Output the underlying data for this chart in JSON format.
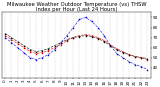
{
  "title": "Milwaukee Weather Outdoor Temperature (vs) THSW Index per Hour (Last 24 Hours)",
  "hours": [
    0,
    1,
    2,
    3,
    4,
    5,
    6,
    7,
    8,
    9,
    10,
    11,
    12,
    13,
    14,
    15,
    16,
    17,
    18,
    19,
    20,
    21,
    22,
    23
  ],
  "temp": [
    72,
    68,
    64,
    60,
    56,
    54,
    55,
    57,
    60,
    63,
    67,
    70,
    72,
    73,
    72,
    70,
    67,
    63,
    59,
    56,
    53,
    51,
    50,
    48
  ],
  "thsw": [
    70,
    65,
    60,
    55,
    50,
    48,
    50,
    53,
    58,
    65,
    72,
    80,
    88,
    90,
    86,
    80,
    72,
    62,
    54,
    50,
    46,
    43,
    41,
    38
  ],
  "black": [
    74,
    70,
    66,
    62,
    58,
    56,
    57,
    59,
    62,
    65,
    68,
    70,
    71,
    72,
    71,
    69,
    66,
    62,
    58,
    55,
    53,
    51,
    50,
    49
  ],
  "temp_color": "#dd0000",
  "thsw_color": "#0000dd",
  "black_color": "#000000",
  "ylim_min": 30,
  "ylim_max": 95,
  "yticks": [
    40,
    50,
    60,
    70,
    80,
    90
  ],
  "ytick_labels": [
    "40",
    "50",
    "60",
    "70",
    "80",
    "90"
  ],
  "background_color": "#ffffff",
  "grid_color": "#999999",
  "title_fontsize": 3.8,
  "tick_fontsize": 3.0
}
